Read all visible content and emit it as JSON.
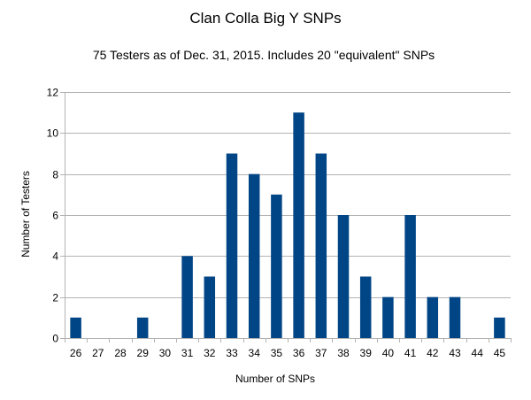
{
  "chart_data": {
    "type": "bar",
    "title": "Clan Colla Big Y SNPs",
    "subtitle": "75 Testers as of Dec. 31, 2015. Includes 20 \"equivalent\" SNPs",
    "xlabel": "Number of SNPs",
    "ylabel": "Number of Testers",
    "categories": [
      "26",
      "27",
      "28",
      "29",
      "30",
      "31",
      "32",
      "33",
      "34",
      "35",
      "36",
      "37",
      "38",
      "39",
      "40",
      "41",
      "42",
      "43",
      "44",
      "45"
    ],
    "series": [
      {
        "values": [
          1,
          0,
          0,
          1,
          0,
          4,
          3,
          9,
          8,
          7,
          11,
          9,
          6,
          3,
          2,
          6,
          2,
          2,
          0,
          1
        ]
      }
    ],
    "ylim": [
      0,
      12
    ],
    "yticks": [
      0,
      2,
      4,
      6,
      8,
      10,
      12
    ],
    "grid": true,
    "legend": "none",
    "bar_color": "#004586",
    "grid_color": "#b3b3b3",
    "axis_color": "#b3b3b3"
  }
}
